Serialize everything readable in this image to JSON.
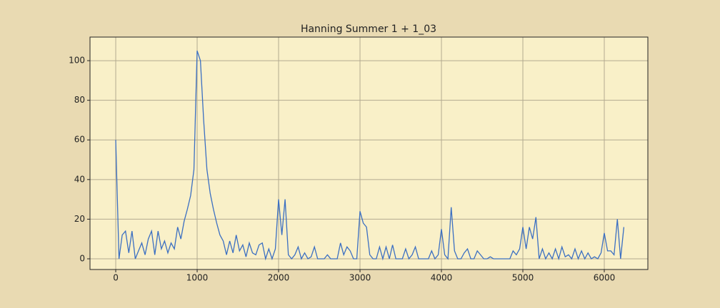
{
  "chart_data": {
    "type": "line",
    "title": "Hanning Summer 1 + 1_03",
    "x": [
      0,
      40,
      80,
      120,
      160,
      200,
      240,
      280,
      320,
      360,
      400,
      440,
      480,
      520,
      560,
      600,
      640,
      680,
      720,
      760,
      800,
      840,
      880,
      920,
      960,
      1000,
      1040,
      1080,
      1120,
      1160,
      1200,
      1240,
      1280,
      1320,
      1360,
      1400,
      1440,
      1480,
      1520,
      1560,
      1600,
      1640,
      1680,
      1720,
      1760,
      1800,
      1840,
      1880,
      1920,
      1960,
      2000,
      2040,
      2080,
      2120,
      2160,
      2200,
      2240,
      2280,
      2320,
      2360,
      2400,
      2440,
      2480,
      2520,
      2560,
      2600,
      2640,
      2680,
      2720,
      2760,
      2800,
      2840,
      2880,
      2920,
      2960,
      3000,
      3040,
      3080,
      3120,
      3160,
      3200,
      3240,
      3280,
      3320,
      3360,
      3400,
      3440,
      3480,
      3520,
      3560,
      3600,
      3640,
      3680,
      3720,
      3760,
      3800,
      3840,
      3880,
      3920,
      3960,
      4000,
      4040,
      4080,
      4120,
      4160,
      4200,
      4240,
      4280,
      4320,
      4360,
      4400,
      4440,
      4480,
      4520,
      4560,
      4600,
      4640,
      4680,
      4720,
      4760,
      4800,
      4840,
      4880,
      4920,
      4960,
      5000,
      5040,
      5080,
      5120,
      5160,
      5200,
      5240,
      5280,
      5320,
      5360,
      5400,
      5440,
      5480,
      5520,
      5560,
      5600,
      5640,
      5680,
      5720,
      5760,
      5800,
      5840,
      5880,
      5920,
      5960,
      6000,
      6040,
      6080,
      6120,
      6160,
      6200,
      6240
    ],
    "series": [
      {
        "color": "#3b6fc2",
        "values": [
          60,
          0,
          12,
          14,
          3,
          14,
          0,
          4,
          8,
          2,
          10,
          14,
          2,
          14,
          5,
          9,
          3,
          8,
          5,
          16,
          10,
          19,
          25,
          32,
          45,
          105,
          100,
          70,
          45,
          33,
          25,
          18,
          12,
          9,
          2,
          9,
          3,
          12,
          4,
          7,
          1,
          8,
          3,
          2,
          7,
          8,
          0,
          5,
          0,
          5,
          30,
          12,
          30,
          2,
          0,
          2,
          6,
          0,
          3,
          0,
          1,
          6,
          0,
          0,
          0,
          2,
          0,
          0,
          0,
          8,
          2,
          6,
          4,
          0,
          0,
          24,
          18,
          16,
          2,
          0,
          0,
          6,
          0,
          6,
          0,
          7,
          0,
          0,
          0,
          5,
          0,
          2,
          6,
          0,
          0,
          0,
          0,
          4,
          0,
          2,
          15,
          2,
          0,
          26,
          4,
          0,
          0,
          3,
          5,
          0,
          0,
          4,
          2,
          0,
          0,
          1,
          0,
          0,
          0,
          0,
          0,
          0,
          4,
          2,
          5,
          16,
          5,
          16,
          10,
          21,
          0,
          5,
          0,
          3,
          0,
          5,
          0,
          6,
          1,
          2,
          0,
          5,
          0,
          4,
          0,
          3,
          0,
          1,
          0,
          3,
          13,
          4,
          4,
          2,
          20,
          0,
          16
        ]
      }
    ],
    "xlim": [
      -316,
      6535
    ],
    "ylim": [
      -5.4,
      111.9
    ],
    "xticks": [
      0,
      1000,
      2000,
      3000,
      4000,
      5000,
      6000
    ],
    "yticks": [
      0,
      20,
      40,
      60,
      80,
      100
    ],
    "grid": true
  }
}
